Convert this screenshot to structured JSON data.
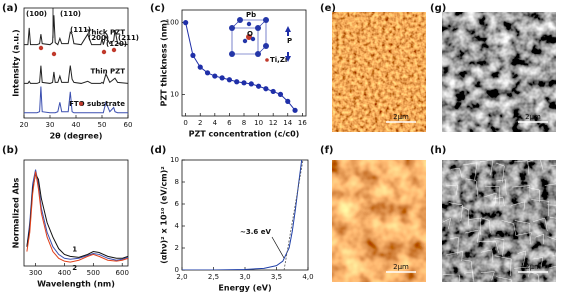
{
  "chart_data": [
    {
      "type": "line",
      "panel": "(a)",
      "xlabel": "2θ (degree)",
      "ylabel": "Intensity (a.u.)",
      "x": [
        20,
        21.5,
        22,
        22.5,
        25,
        26,
        26.5,
        27,
        30,
        31,
        31.5,
        32,
        33,
        33.8,
        34.5,
        37,
        37.8,
        38.5,
        39.2,
        42,
        44.5,
        46,
        49.5,
        50,
        50.5,
        51.5,
        53,
        54.5,
        55,
        56,
        60
      ],
      "xlim": [
        20,
        60
      ],
      "xticks": [
        20,
        30,
        40,
        50,
        60
      ],
      "ylim": [
        0,
        10.5
      ],
      "series": [
        {
          "name": "Thick PZT",
          "color": "#222222",
          "values": [
            7.0,
            7.0,
            8.6,
            7.0,
            7.0,
            7.1,
            8.0,
            7.1,
            7.0,
            7.2,
            9.8,
            7.2,
            7.0,
            7.6,
            7.1,
            7.1,
            8.2,
            8.0,
            7.1,
            7.0,
            8.0,
            7.0,
            7.0,
            7.6,
            7.0,
            7.8,
            7.1,
            7.4,
            8.4,
            7.1,
            7.0
          ]
        },
        {
          "name": "Thin PZT",
          "color": "#222222",
          "values": [
            3.3,
            3.3,
            3.5,
            3.3,
            3.3,
            3.4,
            5.0,
            3.4,
            3.3,
            3.4,
            4.4,
            3.4,
            3.4,
            4.0,
            3.4,
            3.4,
            5.0,
            3.7,
            3.4,
            3.3,
            3.5,
            3.3,
            3.3,
            3.4,
            3.3,
            4.2,
            3.4,
            3.7,
            3.8,
            3.4,
            3.3
          ]
        },
        {
          "name": "FTO substrate",
          "color": "#3b4fb0",
          "values": [
            0.5,
            0.5,
            0.5,
            0.5,
            0.5,
            0.6,
            3.0,
            0.6,
            0.5,
            0.5,
            0.5,
            0.5,
            0.6,
            1.5,
            0.6,
            0.6,
            2.5,
            0.6,
            0.5,
            0.5,
            0.5,
            0.5,
            0.5,
            0.5,
            0.5,
            1.5,
            0.6,
            1.0,
            0.6,
            0.5,
            0.5
          ]
        }
      ],
      "peak_labels": [
        "(100)",
        "(110)",
        "(111)",
        "(200)",
        "(120)",
        "(211)"
      ]
    },
    {
      "type": "line",
      "panel": "(b)",
      "xlabel": "Wavelength (nm)",
      "ylabel": "Normalized Abs",
      "x": [
        270,
        280,
        290,
        300,
        310,
        320,
        340,
        360,
        380,
        400,
        420,
        450,
        480,
        500,
        520,
        550,
        580,
        600,
        620
      ],
      "xlim": [
        260,
        620
      ],
      "xticks": [
        300,
        400,
        500,
        600
      ],
      "ylim": [
        0,
        1.1
      ],
      "series": [
        {
          "color": "#3b4fb0",
          "values": [
            0.2,
            0.45,
            0.85,
            1.0,
            0.85,
            0.6,
            0.35,
            0.2,
            0.12,
            0.08,
            0.07,
            0.08,
            0.11,
            0.13,
            0.12,
            0.08,
            0.06,
            0.07,
            0.09
          ]
        },
        {
          "name": "1",
          "color": "#111111",
          "values": [
            0.2,
            0.4,
            0.8,
            0.95,
            0.9,
            0.7,
            0.45,
            0.3,
            0.18,
            0.12,
            0.1,
            0.09,
            0.12,
            0.15,
            0.14,
            0.1,
            0.08,
            0.08,
            0.1
          ]
        },
        {
          "name": "2",
          "color": "#e0401a",
          "values": [
            0.15,
            0.35,
            0.75,
            0.98,
            0.8,
            0.55,
            0.3,
            0.15,
            0.08,
            0.05,
            0.04,
            0.06,
            0.1,
            0.12,
            0.1,
            0.06,
            0.05,
            0.06,
            0.08
          ]
        }
      ]
    },
    {
      "type": "line",
      "panel": "(c)",
      "xlabel": "PZT concentration (c/c0)",
      "ylabel": "PZT thickness (nm)",
      "x": [
        0,
        1,
        2,
        3,
        4,
        5,
        6,
        7,
        8,
        9,
        10,
        11,
        12,
        13,
        14,
        15
      ],
      "xlim": [
        -0.5,
        16.5
      ],
      "xticks": [
        0,
        2,
        4,
        6,
        8,
        10,
        12,
        14,
        16
      ],
      "ylim": [
        5,
        150
      ],
      "yticks": [
        10,
        100
      ],
      "log_y": true,
      "markers": true,
      "series": [
        {
          "color": "#1f2fa8",
          "values": [
            100,
            35,
            24,
            20,
            18,
            17,
            16,
            15,
            14.5,
            14,
            13,
            12,
            11,
            10,
            8,
            6
          ]
        }
      ],
      "inset_labels": [
        "Pb",
        "O",
        "Ti,Zr",
        "P"
      ]
    },
    {
      "type": "line",
      "panel": "(d)",
      "xlabel": "Energy (eV)",
      "ylabel": "(αhν)² x 10¹⁰ (eV/cm)²",
      "x": [
        2.0,
        2.5,
        3.0,
        3.3,
        3.5,
        3.6,
        3.7,
        3.75,
        3.8,
        3.85,
        3.9
      ],
      "xlim": [
        2.0,
        4.0
      ],
      "xticks": [
        {
          "value": 2.0,
          "label": "2,0"
        },
        {
          "value": 2.5,
          "label": "2,5"
        },
        {
          "value": 3.0,
          "label": "3,0"
        },
        {
          "value": 3.5,
          "label": "3,5"
        },
        {
          "value": 4.0,
          "label": "4,0"
        }
      ],
      "ylim": [
        0,
        10
      ],
      "yticks": [
        0,
        2,
        4,
        6,
        8,
        10
      ],
      "series": [
        {
          "color": "#1f3fa8",
          "values": [
            0,
            0,
            0.05,
            0.15,
            0.4,
            0.8,
            2,
            3.5,
            5.5,
            7.8,
            10
          ]
        }
      ],
      "fit_line": {
        "x": [
          3.62,
          3.92
        ],
        "y": [
          0,
          10
        ]
      },
      "annotation": "~3.6 eV"
    }
  ],
  "images": [
    {
      "panel": "(e)",
      "scale_label": "2μm"
    },
    {
      "panel": "(f)",
      "scale_label": "2μm"
    },
    {
      "panel": "(g)",
      "scale_label": "2μm"
    },
    {
      "panel": "(h)",
      "scale_label": "2μm"
    }
  ]
}
